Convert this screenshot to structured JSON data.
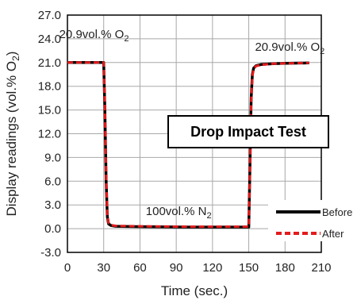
{
  "chart_data": {
    "type": "line",
    "title": "Drop Impact Test",
    "xlabel": "Time (sec.)",
    "ylabel": "Display readings  (vol.% O2)",
    "ylabel_main": "Display readings  (vol.% O",
    "ylabel_sub": "2",
    "ylabel_tail": ")",
    "xlim": [
      0,
      210
    ],
    "ylim": [
      -3.0,
      27.0
    ],
    "xticks": [
      "0",
      "30",
      "60",
      "90",
      "120",
      "150",
      "180",
      "210"
    ],
    "xtick_values": [
      0,
      30,
      60,
      90,
      120,
      150,
      180,
      210
    ],
    "yticks": [
      "-3.0",
      "0.0",
      "3.0",
      "6.0",
      "9.0",
      "12.0",
      "15.0",
      "18.0",
      "21.0",
      "24.0",
      "27.0"
    ],
    "ytick_values": [
      -3,
      0,
      3,
      6,
      9,
      12,
      15,
      18,
      21,
      24,
      27
    ],
    "grid": true,
    "legend_position": "bottom-right",
    "annotations": [
      {
        "id": "o2-left",
        "main": "20.9vol.% O",
        "sub": "2",
        "x": 22,
        "y": 24.1
      },
      {
        "id": "n2-mid",
        "main": "100vol.% N",
        "sub": "2",
        "x": 92,
        "y": 1.7
      },
      {
        "id": "o2-right",
        "main": "20.9vol.% O",
        "sub": "2",
        "x": 184,
        "y": 22.5
      }
    ],
    "series": [
      {
        "name": "Before",
        "color": "#000000",
        "style": "solid",
        "x": [
          0,
          30,
          31,
          32,
          33,
          34,
          36,
          40,
          60,
          100,
          150,
          151,
          152,
          153,
          154,
          156,
          160,
          170,
          180,
          200
        ],
        "y": [
          21.0,
          21.0,
          15.0,
          6.0,
          1.5,
          0.6,
          0.4,
          0.3,
          0.25,
          0.2,
          0.2,
          8.0,
          16.5,
          19.5,
          20.3,
          20.6,
          20.75,
          20.85,
          20.9,
          20.95
        ]
      },
      {
        "name": "After",
        "color": "#e41a1c",
        "style": "dashed",
        "x": [
          0,
          30,
          31,
          32,
          33,
          34,
          36,
          40,
          60,
          100,
          150,
          151,
          152,
          153,
          154,
          156,
          160,
          170,
          180,
          200
        ],
        "y": [
          21.0,
          21.0,
          15.5,
          6.5,
          1.8,
          0.7,
          0.45,
          0.35,
          0.3,
          0.25,
          0.25,
          7.5,
          16.0,
          19.3,
          20.2,
          20.55,
          20.7,
          20.85,
          20.9,
          20.95
        ]
      }
    ]
  }
}
